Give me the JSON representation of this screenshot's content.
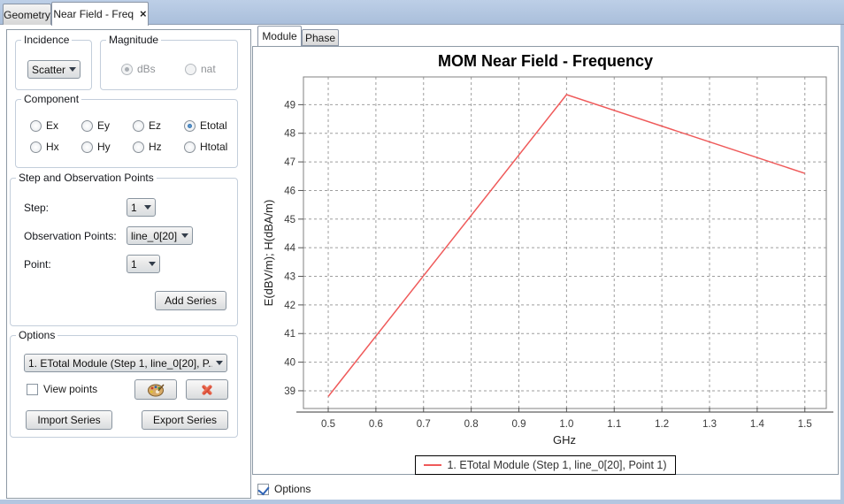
{
  "window_tabs": {
    "geometry": {
      "label": "Geometry"
    },
    "near_field": {
      "label": "Near Field - Freq",
      "close_icon": "×"
    }
  },
  "left_panel": {
    "incidence": {
      "title": "Incidence",
      "combo_value": "Scatter"
    },
    "magnitude": {
      "title": "Magnitude",
      "options": [
        {
          "label": "dBs"
        },
        {
          "label": "nat"
        }
      ],
      "selected": "dBs"
    },
    "component": {
      "title": "Component",
      "options": [
        {
          "label": "Ex"
        },
        {
          "label": "Ey"
        },
        {
          "label": "Ez"
        },
        {
          "label": "Etotal"
        },
        {
          "label": "Hx"
        },
        {
          "label": "Hy"
        },
        {
          "label": "Hz"
        },
        {
          "label": "Htotal"
        }
      ],
      "selected": "Etotal"
    },
    "step_obs": {
      "title": "Step and Observation Points",
      "step_label": "Step:",
      "step_value": "1",
      "obs_label": "Observation Points:",
      "obs_value": "line_0[20]",
      "point_label": "Point:",
      "point_value": "1",
      "add_series_button": "Add Series"
    },
    "options": {
      "title": "Options",
      "series_combo_value": "1. ETotal Module (Step 1, line_0[20], P...",
      "view_points_label": "View points",
      "import_button": "Import Series",
      "export_button": "Export Series"
    }
  },
  "chart_panel": {
    "tabs": [
      {
        "label": "Module"
      },
      {
        "label": "Phase"
      }
    ],
    "active_tab": "Module",
    "options_checkbox_label": "Options",
    "options_checked": true
  },
  "chart_data": {
    "type": "line",
    "title": "MOM Near Field - Frequency",
    "xlabel": "GHz",
    "ylabel": "E(dBV/m); H(dBA/m)",
    "x": [
      0.5,
      1.0,
      1.5
    ],
    "series": [
      {
        "name": "1. ETotal Module (Step 1, line_0[20], Point 1)",
        "values": [
          38.8,
          49.35,
          46.6
        ],
        "color": "#ef5a5a"
      }
    ],
    "xlim": [
      0.448,
      1.545
    ],
    "ylim": [
      38.38,
      49.97
    ],
    "xticks": [
      0.5,
      0.6,
      0.7,
      0.8,
      0.9,
      1.0,
      1.1,
      1.2,
      1.3,
      1.4,
      1.5
    ],
    "yticks": [
      39,
      40,
      41,
      42,
      43,
      44,
      45,
      46,
      47,
      48,
      49
    ],
    "grid": true,
    "legend_position": "bottom"
  }
}
